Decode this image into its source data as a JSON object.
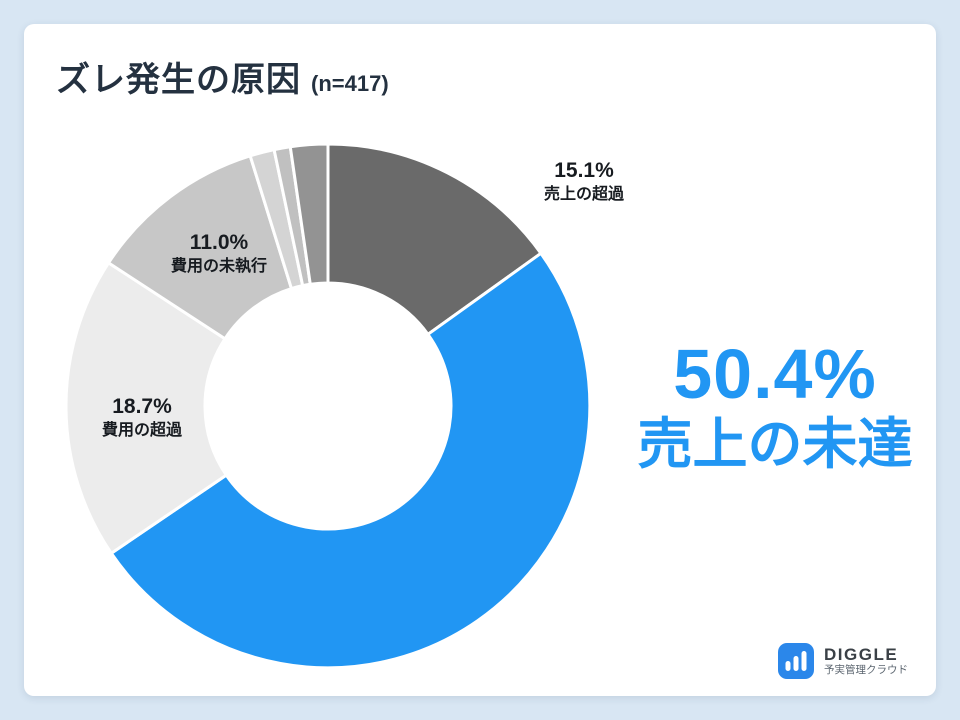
{
  "header": {
    "title": "ズレ発生の原因",
    "sample": "(n=417)"
  },
  "chart_data": {
    "type": "pie",
    "title": "ズレ発生の原因 (n=417)",
    "donut": true,
    "inner_radius_ratio": 0.47,
    "start_angle": "top",
    "direction": "clockwise",
    "slices": [
      {
        "label": "売上の超過",
        "value": 15.1,
        "color": "#6a6a6a"
      },
      {
        "label": "売上の未達",
        "value": 50.4,
        "color": "#2196f3"
      },
      {
        "label": "費用の超過",
        "value": 18.7,
        "color": "#ececec"
      },
      {
        "label": "費用の未執行",
        "value": 11.0,
        "color": "#c7c7c7"
      },
      {
        "label": "",
        "value": 1.5,
        "color": "#d4d4d4"
      },
      {
        "label": "",
        "value": 1.0,
        "color": "#c0c0c0"
      },
      {
        "label": "",
        "value": 2.3,
        "color": "#939393"
      }
    ]
  },
  "labels": {
    "sales_over": {
      "pct": "15.1%",
      "name": "売上の超過"
    },
    "cost_unexecuted": {
      "pct": "11.0%",
      "name": "費用の未執行"
    },
    "cost_over": {
      "pct": "18.7%",
      "name": "費用の超過"
    }
  },
  "callout": {
    "pct": "50.4%",
    "name": "売上の未達",
    "color": "#2196f3"
  },
  "logo": {
    "brand": "DIGGLE",
    "tagline": "予実管理クラウド"
  }
}
